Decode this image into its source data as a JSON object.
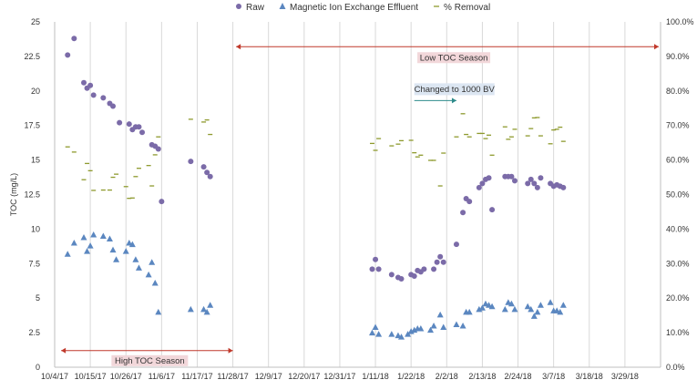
{
  "chart_data": {
    "type": "scatter",
    "x_type": "date",
    "xlim": [
      "2017-10-04",
      "2018-04-09"
    ],
    "x_ticks": [
      "10/4/17",
      "10/15/17",
      "10/26/17",
      "11/6/17",
      "11/17/17",
      "11/28/17",
      "12/9/17",
      "12/20/17",
      "12/31/17",
      "1/11/18",
      "1/22/18",
      "2/2/18",
      "2/13/18",
      "2/24/18",
      "3/7/18",
      "3/18/18",
      "3/29/18"
    ],
    "ylabel": "TOC (mg/L)",
    "ylim": [
      0,
      25
    ],
    "y_ticks": [
      "0",
      "2.5",
      "5",
      "7.5",
      "10",
      "12.5",
      "15",
      "17.5",
      "20",
      "22.5",
      "25"
    ],
    "y2lim": [
      0,
      100
    ],
    "y2_ticks": [
      "0.0%",
      "10.0%",
      "20.0%",
      "30.0%",
      "40.0%",
      "50.0%",
      "60.0%",
      "70.0%",
      "80.0%",
      "90.0%",
      "100.0%"
    ],
    "grid": "vertical",
    "legend_position": "top",
    "series": [
      {
        "name": "Raw",
        "axis": "left",
        "marker": "circle",
        "color": "#7B6BA8",
        "points": [
          [
            "2017-10-08",
            22.6
          ],
          [
            "2017-10-10",
            23.8
          ],
          [
            "2017-10-13",
            20.6
          ],
          [
            "2017-10-14",
            20.2
          ],
          [
            "2017-10-15",
            20.4
          ],
          [
            "2017-10-16",
            19.7
          ],
          [
            "2017-10-19",
            19.5
          ],
          [
            "2017-10-21",
            19.1
          ],
          [
            "2017-10-22",
            18.9
          ],
          [
            "2017-10-24",
            17.7
          ],
          [
            "2017-10-27",
            17.6
          ],
          [
            "2017-10-28",
            17.2
          ],
          [
            "2017-10-29",
            17.4
          ],
          [
            "2017-10-30",
            17.4
          ],
          [
            "2017-10-31",
            17.0
          ],
          [
            "2017-11-03",
            16.1
          ],
          [
            "2017-11-04",
            16.0
          ],
          [
            "2017-11-05",
            15.8
          ],
          [
            "2017-11-06",
            12.0
          ],
          [
            "2017-11-15",
            14.9
          ],
          [
            "2017-11-19",
            14.5
          ],
          [
            "2017-11-20",
            14.1
          ],
          [
            "2017-11-21",
            13.8
          ],
          [
            "2018-01-10",
            7.1
          ],
          [
            "2018-01-11",
            7.8
          ],
          [
            "2018-01-12",
            7.1
          ],
          [
            "2018-01-16",
            6.7
          ],
          [
            "2018-01-18",
            6.5
          ],
          [
            "2018-01-19",
            6.4
          ],
          [
            "2018-01-22",
            6.7
          ],
          [
            "2018-01-23",
            6.6
          ],
          [
            "2018-01-24",
            7.0
          ],
          [
            "2018-01-25",
            6.9
          ],
          [
            "2018-01-26",
            7.1
          ],
          [
            "2018-01-29",
            7.1
          ],
          [
            "2018-01-30",
            7.6
          ],
          [
            "2018-01-31",
            8.0
          ],
          [
            "2018-02-01",
            7.6
          ],
          [
            "2018-02-05",
            8.9
          ],
          [
            "2018-02-07",
            11.2
          ],
          [
            "2018-02-08",
            12.2
          ],
          [
            "2018-02-09",
            12.0
          ],
          [
            "2018-02-12",
            13.0
          ],
          [
            "2018-02-13",
            13.3
          ],
          [
            "2018-02-14",
            13.6
          ],
          [
            "2018-02-15",
            13.7
          ],
          [
            "2018-02-16",
            11.4
          ],
          [
            "2018-02-20",
            13.8
          ],
          [
            "2018-02-21",
            13.8
          ],
          [
            "2018-02-22",
            13.8
          ],
          [
            "2018-02-23",
            13.5
          ],
          [
            "2018-02-27",
            13.3
          ],
          [
            "2018-02-28",
            13.6
          ],
          [
            "2018-03-01",
            13.3
          ],
          [
            "2018-03-02",
            13.0
          ],
          [
            "2018-03-03",
            13.7
          ],
          [
            "2018-03-06",
            13.3
          ],
          [
            "2018-03-07",
            13.1
          ],
          [
            "2018-03-08",
            13.2
          ],
          [
            "2018-03-09",
            13.1
          ],
          [
            "2018-03-10",
            13.0
          ]
        ]
      },
      {
        "name": "Magnetic Ion Exchange Effluent",
        "axis": "left",
        "marker": "triangle",
        "color": "#5B87C0",
        "points": [
          [
            "2017-10-08",
            8.2
          ],
          [
            "2017-10-10",
            9.0
          ],
          [
            "2017-10-13",
            9.4
          ],
          [
            "2017-10-14",
            8.4
          ],
          [
            "2017-10-15",
            8.8
          ],
          [
            "2017-10-16",
            9.6
          ],
          [
            "2017-10-19",
            9.5
          ],
          [
            "2017-10-21",
            9.3
          ],
          [
            "2017-10-22",
            8.5
          ],
          [
            "2017-10-23",
            7.8
          ],
          [
            "2017-10-26",
            8.4
          ],
          [
            "2017-10-27",
            9.0
          ],
          [
            "2017-10-28",
            8.9
          ],
          [
            "2017-10-29",
            7.8
          ],
          [
            "2017-10-30",
            7.2
          ],
          [
            "2017-11-02",
            6.7
          ],
          [
            "2017-11-03",
            7.6
          ],
          [
            "2017-11-04",
            6.1
          ],
          [
            "2017-11-05",
            4.0
          ],
          [
            "2017-11-15",
            4.2
          ],
          [
            "2017-11-19",
            4.2
          ],
          [
            "2017-11-20",
            4.0
          ],
          [
            "2017-11-21",
            4.5
          ],
          [
            "2018-01-10",
            2.5
          ],
          [
            "2018-01-11",
            2.9
          ],
          [
            "2018-01-12",
            2.4
          ],
          [
            "2018-01-16",
            2.4
          ],
          [
            "2018-01-18",
            2.3
          ],
          [
            "2018-01-19",
            2.2
          ],
          [
            "2018-01-21",
            2.4
          ],
          [
            "2018-01-22",
            2.6
          ],
          [
            "2018-01-23",
            2.7
          ],
          [
            "2018-01-24",
            2.8
          ],
          [
            "2018-01-25",
            2.8
          ],
          [
            "2018-01-28",
            2.7
          ],
          [
            "2018-01-29",
            3.0
          ],
          [
            "2018-01-31",
            3.8
          ],
          [
            "2018-02-01",
            2.9
          ],
          [
            "2018-02-05",
            3.1
          ],
          [
            "2018-02-07",
            3.0
          ],
          [
            "2018-02-08",
            4.0
          ],
          [
            "2018-02-09",
            4.0
          ],
          [
            "2018-02-12",
            4.2
          ],
          [
            "2018-02-13",
            4.3
          ],
          [
            "2018-02-14",
            4.6
          ],
          [
            "2018-02-15",
            4.5
          ],
          [
            "2018-02-16",
            4.4
          ],
          [
            "2018-02-20",
            4.2
          ],
          [
            "2018-02-21",
            4.7
          ],
          [
            "2018-02-22",
            4.6
          ],
          [
            "2018-02-23",
            4.2
          ],
          [
            "2018-02-27",
            4.4
          ],
          [
            "2018-02-28",
            4.2
          ],
          [
            "2018-03-01",
            3.7
          ],
          [
            "2018-03-02",
            4.0
          ],
          [
            "2018-03-03",
            4.5
          ],
          [
            "2018-03-06",
            4.7
          ],
          [
            "2018-03-07",
            4.1
          ],
          [
            "2018-03-08",
            4.1
          ],
          [
            "2018-03-09",
            4.0
          ],
          [
            "2018-03-10",
            4.5
          ]
        ]
      },
      {
        "name": "% Removal",
        "axis": "right",
        "marker": "dash",
        "color": "#8E9A2E",
        "points": [
          [
            "2017-10-08",
            63.8
          ],
          [
            "2017-10-10",
            62.3
          ],
          [
            "2017-10-13",
            54.3
          ],
          [
            "2017-10-14",
            59.0
          ],
          [
            "2017-10-15",
            56.9
          ],
          [
            "2017-10-16",
            51.2
          ],
          [
            "2017-10-19",
            51.3
          ],
          [
            "2017-10-21",
            51.3
          ],
          [
            "2017-10-22",
            55.0
          ],
          [
            "2017-10-23",
            55.9
          ],
          [
            "2017-10-26",
            52.3
          ],
          [
            "2017-10-27",
            48.9
          ],
          [
            "2017-10-28",
            49.0
          ],
          [
            "2017-10-29",
            55.2
          ],
          [
            "2017-10-30",
            57.6
          ],
          [
            "2017-11-02",
            58.4
          ],
          [
            "2017-11-03",
            52.5
          ],
          [
            "2017-11-04",
            61.5
          ],
          [
            "2017-11-05",
            66.7
          ],
          [
            "2017-11-15",
            71.8
          ],
          [
            "2017-11-19",
            71.0
          ],
          [
            "2017-11-20",
            71.6
          ],
          [
            "2017-11-21",
            67.4
          ],
          [
            "2018-01-10",
            64.8
          ],
          [
            "2018-01-11",
            62.8
          ],
          [
            "2018-01-12",
            66.2
          ],
          [
            "2018-01-16",
            64.1
          ],
          [
            "2018-01-18",
            64.6
          ],
          [
            "2018-01-19",
            65.6
          ],
          [
            "2018-01-22",
            65.7
          ],
          [
            "2018-01-23",
            62.1
          ],
          [
            "2018-01-24",
            60.9
          ],
          [
            "2018-01-25",
            61.4
          ],
          [
            "2018-01-28",
            59.9
          ],
          [
            "2018-01-29",
            59.9
          ],
          [
            "2018-01-31",
            52.5
          ],
          [
            "2018-02-01",
            62.0
          ],
          [
            "2018-02-05",
            66.7
          ],
          [
            "2018-02-07",
            73.4
          ],
          [
            "2018-02-08",
            67.4
          ],
          [
            "2018-02-09",
            66.7
          ],
          [
            "2018-02-12",
            67.7
          ],
          [
            "2018-02-13",
            67.7
          ],
          [
            "2018-02-14",
            66.2
          ],
          [
            "2018-02-15",
            67.2
          ],
          [
            "2018-02-16",
            61.4
          ],
          [
            "2018-02-20",
            69.6
          ],
          [
            "2018-02-21",
            66.0
          ],
          [
            "2018-02-22",
            66.7
          ],
          [
            "2018-02-23",
            68.9
          ],
          [
            "2018-02-27",
            67.0
          ],
          [
            "2018-02-28",
            69.1
          ],
          [
            "2018-03-01",
            72.2
          ],
          [
            "2018-03-02",
            72.3
          ],
          [
            "2018-03-03",
            67.0
          ],
          [
            "2018-03-06",
            64.7
          ],
          [
            "2018-03-07",
            68.7
          ],
          [
            "2018-03-08",
            68.9
          ],
          [
            "2018-03-09",
            69.5
          ],
          [
            "2018-03-10",
            65.4
          ]
        ]
      }
    ],
    "annotations": [
      {
        "type": "double-arrow",
        "label": "Low TOC Season",
        "x_start": "2017-11-29",
        "x_end": "2018-04-09",
        "y": 23.2
      },
      {
        "type": "double-arrow",
        "label": "High TOC Season",
        "x_start": "2017-10-06",
        "x_end": "2017-11-28",
        "y": 1.2
      },
      {
        "type": "arrow",
        "label": "Changed to 1000 BV",
        "x_start": "2018-01-23",
        "x_end": "2018-02-05",
        "y": 19.3
      }
    ]
  },
  "colors": {
    "grid": "#D9D9D9",
    "axis": "#BFBFBF",
    "annotation_arrow": "#C0392B",
    "annotation_label_bg": "#F2D7DA",
    "bv_label_bg": "#DCE6F2",
    "bv_arrow": "#2E8B8B"
  }
}
